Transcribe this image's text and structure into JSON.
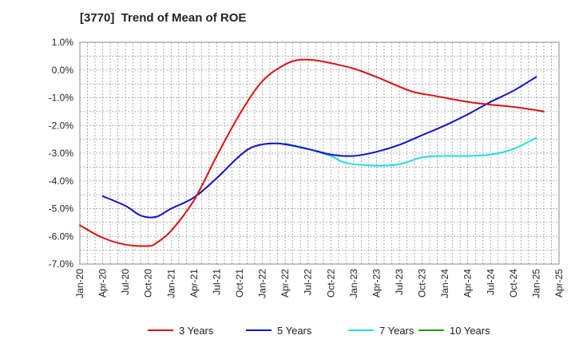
{
  "chart_data": {
    "type": "line",
    "title": "[3770]  Trend of Mean of ROE",
    "xlabel": "",
    "ylabel": "",
    "ylim": [
      -7.0,
      1.0
    ],
    "yticks": [
      "1.0%",
      "0.0%",
      "-1.0%",
      "-2.0%",
      "-3.0%",
      "-4.0%",
      "-5.0%",
      "-6.0%",
      "-7.0%"
    ],
    "xticks": [
      "Jan-20",
      "Apr-20",
      "Jul-20",
      "Oct-20",
      "Jan-21",
      "Apr-21",
      "Jul-21",
      "Oct-21",
      "Jan-22",
      "Apr-22",
      "Jul-22",
      "Oct-22",
      "Jan-23",
      "Apr-23",
      "Jul-23",
      "Oct-23",
      "Jan-24",
      "Apr-24",
      "Jul-24",
      "Oct-24",
      "Jan-25",
      "Apr-25"
    ],
    "grid": true,
    "legend_position": "bottom",
    "series": [
      {
        "name": "3 Years",
        "color": "#dd1111",
        "points": [
          [
            "Jan-20",
            -5.6
          ],
          [
            "Apr-20",
            -6.05
          ],
          [
            "Jul-20",
            -6.3
          ],
          [
            "Oct-20",
            -6.35
          ],
          [
            "Nov-20",
            -6.25
          ],
          [
            "Jan-21",
            -5.8
          ],
          [
            "Apr-21",
            -4.7
          ],
          [
            "Jul-21",
            -3.1
          ],
          [
            "Oct-21",
            -1.6
          ],
          [
            "Jan-22",
            -0.4
          ],
          [
            "Apr-22",
            0.2
          ],
          [
            "Jun-22",
            0.37
          ],
          [
            "Aug-22",
            0.35
          ],
          [
            "Oct-22",
            0.25
          ],
          [
            "Jan-23",
            0.05
          ],
          [
            "Apr-23",
            -0.25
          ],
          [
            "Jul-23",
            -0.6
          ],
          [
            "Sep-23",
            -0.8
          ],
          [
            "Dec-23",
            -0.95
          ],
          [
            "Apr-24",
            -1.15
          ],
          [
            "Jul-24",
            -1.25
          ],
          [
            "Oct-24",
            -1.33
          ],
          [
            "Jan-25",
            -1.45
          ],
          [
            "Feb-25",
            -1.5
          ]
        ]
      },
      {
        "name": "5 Years",
        "color": "#1111cc",
        "points": [
          [
            "Apr-20",
            -4.55
          ],
          [
            "Jul-20",
            -4.9
          ],
          [
            "Sep-20",
            -5.25
          ],
          [
            "Nov-20",
            -5.3
          ],
          [
            "Jan-21",
            -5.0
          ],
          [
            "Apr-21",
            -4.6
          ],
          [
            "Jul-21",
            -3.9
          ],
          [
            "Oct-21",
            -3.1
          ],
          [
            "Dec-21",
            -2.75
          ],
          [
            "Mar-22",
            -2.65
          ],
          [
            "Jul-22",
            -2.85
          ],
          [
            "Oct-22",
            -3.05
          ],
          [
            "Jan-23",
            -3.1
          ],
          [
            "Apr-23",
            -2.95
          ],
          [
            "Jul-23",
            -2.7
          ],
          [
            "Oct-23",
            -2.35
          ],
          [
            "Jan-24",
            -2.0
          ],
          [
            "Apr-24",
            -1.6
          ],
          [
            "Jul-24",
            -1.15
          ],
          [
            "Oct-24",
            -0.75
          ],
          [
            "Jan-25",
            -0.25
          ]
        ]
      },
      {
        "name": "7 Years",
        "color": "#22dddd",
        "points": [
          [
            "Apr-22",
            -2.65
          ],
          [
            "Jul-22",
            -2.85
          ],
          [
            "Oct-22",
            -3.1
          ],
          [
            "Dec-22",
            -3.35
          ],
          [
            "Apr-23",
            -3.45
          ],
          [
            "Jul-23",
            -3.4
          ],
          [
            "Oct-23",
            -3.15
          ],
          [
            "Jan-24",
            -3.1
          ],
          [
            "Apr-24",
            -3.1
          ],
          [
            "Jul-24",
            -3.05
          ],
          [
            "Oct-24",
            -2.85
          ],
          [
            "Jan-25",
            -2.45
          ]
        ]
      },
      {
        "name": "10 Years",
        "color": "#229922",
        "points": []
      }
    ]
  }
}
